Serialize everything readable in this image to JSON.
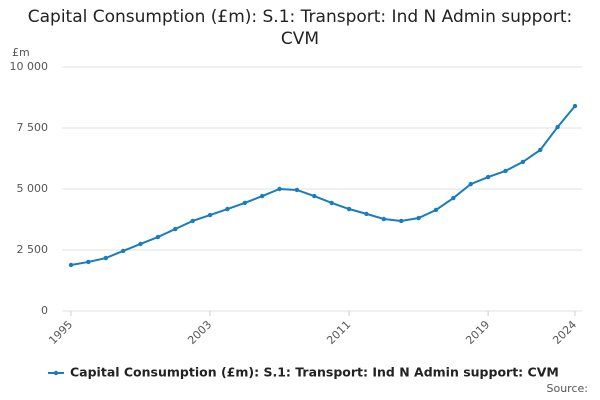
{
  "chart_data": {
    "type": "line",
    "title": "Capital Consumption (£m): S.1: Transport: Ind N Admin support: CVM",
    "y_label": "£m",
    "source": "Source:",
    "x": [
      1995,
      1996,
      1997,
      1998,
      1999,
      2000,
      2001,
      2002,
      2003,
      2004,
      2005,
      2006,
      2007,
      2008,
      2009,
      2010,
      2011,
      2012,
      2013,
      2014,
      2015,
      2016,
      2017,
      2018,
      2019,
      2020,
      2021,
      2022,
      2023,
      2024
    ],
    "series": [
      {
        "name": "Capital Consumption (£m): S.1: Transport: Ind N Admin support: CVM",
        "color": "#1a7dbb",
        "values": [
          1885,
          2010,
          2170,
          2460,
          2750,
          3030,
          3360,
          3690,
          3930,
          4180,
          4430,
          4710,
          5000,
          4960,
          4710,
          4430,
          4180,
          3980,
          3770,
          3690,
          3810,
          4140,
          4630,
          5200,
          5490,
          5740,
          6110,
          6600,
          7540,
          8400
        ]
      }
    ],
    "xlim": [
      1995,
      2024
    ],
    "xticks": [
      1995,
      2003,
      2011,
      2019,
      2024
    ],
    "ylim": [
      0,
      10000
    ],
    "yticks": [
      0,
      {
        "value": 2500,
        "label": "2 500"
      },
      {
        "value": 5000,
        "label": "5 000"
      },
      {
        "value": 7500,
        "label": "7 500"
      },
      {
        "value": 10000,
        "label": "10 000"
      }
    ],
    "grid": true
  }
}
